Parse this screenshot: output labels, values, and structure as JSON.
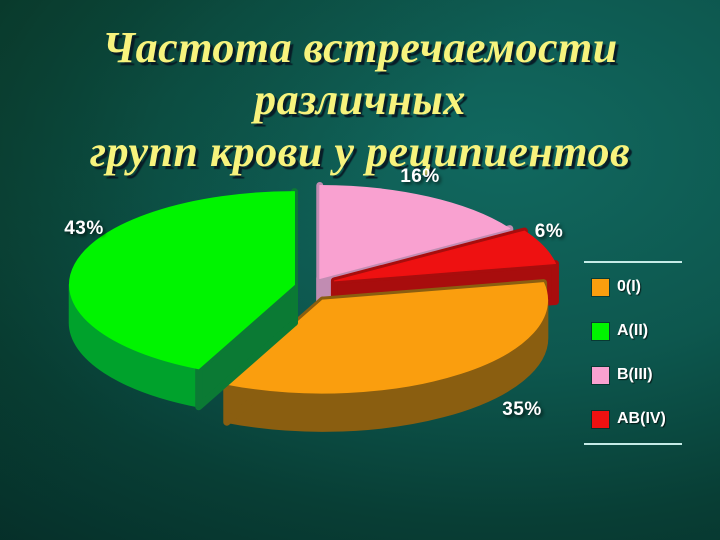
{
  "slide": {
    "title_lines": [
      "Частота встречаемости различных",
      "групп крови у реципиентов"
    ],
    "title_color": "#f7f37d",
    "background": {
      "gradient_inner": "#11685f",
      "gradient_outer": "#052e28"
    },
    "legend_border_color": "#c6ebe7"
  },
  "chart_data": {
    "type": "pie",
    "style": "3d-exploded",
    "title": "Частота встречаемости различных групп крови у реципиентов",
    "unit": "%",
    "legend_position": "right",
    "grid": false,
    "series": [
      {
        "label": "0(I)",
        "value": 35,
        "color": "#FA9E0E",
        "side_color": "#8A5E10",
        "wall_color": "#8A5E10"
      },
      {
        "label": "A(II)",
        "value": 43,
        "color": "#00F400",
        "side_color": "#00A22C",
        "wall_color": "#0B7A34"
      },
      {
        "label": "B(III)",
        "value": 16,
        "color": "#F9A1D0",
        "side_color": "#C18CB2",
        "wall_color": "#C18CB2"
      },
      {
        "label": "AB(IV)",
        "value": 6,
        "color": "#EE1111",
        "wall_color": "#A80D0D",
        "side_color": "#A80D0D"
      }
    ],
    "clockwise_order_from_top": [
      "B(III)",
      "AB(IV)",
      "0(I)",
      "A(II)"
    ],
    "data_labels": [
      "16%",
      "6%",
      "35%",
      "43%"
    ]
  }
}
